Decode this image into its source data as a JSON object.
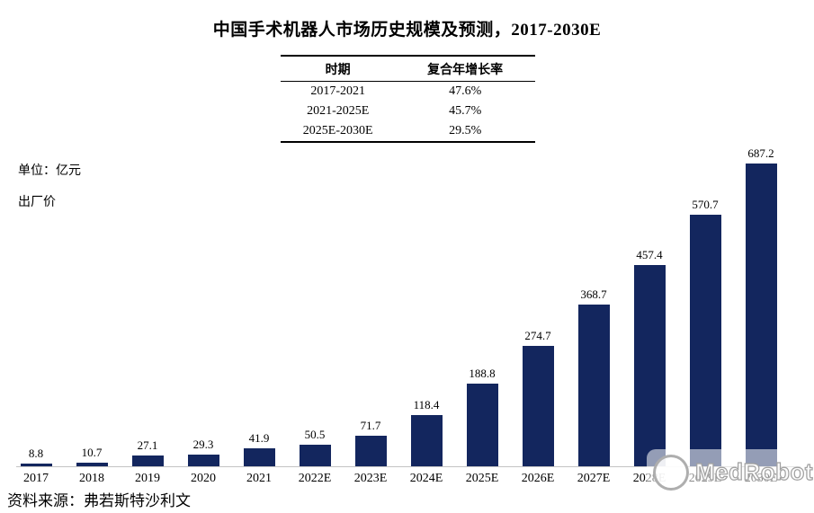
{
  "title": "中国手术机器人市场历史规模及预测，2017-2030E",
  "cagr_table": {
    "headers": [
      "时期",
      "复合年增长率"
    ],
    "rows": [
      [
        "2017-2021",
        "47.6%"
      ],
      [
        "2021-2025E",
        "45.7%"
      ],
      [
        "2025E-2030E",
        "29.5%"
      ]
    ]
  },
  "unit_label": "单位：亿元",
  "price_basis_label": "出厂价",
  "source_note": "资料来源：弗若斯特沙利文",
  "watermark_text": "MedRobot",
  "colors": {
    "bar": "#13265E",
    "axis_line": "#c4c4c4",
    "text": "#000000"
  },
  "chart_data": {
    "type": "bar",
    "title": "中国手术机器人市场历史规模及预测，2017-2030E",
    "categories": [
      "2017",
      "2018",
      "2019",
      "2020",
      "2021",
      "2022E",
      "2023E",
      "2024E",
      "2025E",
      "2026E",
      "2027E",
      "2028E",
      "2029E",
      "2030E"
    ],
    "values": [
      8.8,
      10.7,
      27.1,
      29.3,
      41.9,
      50.5,
      71.7,
      118.4,
      188.8,
      274.7,
      368.7,
      457.4,
      570.7,
      687.2
    ],
    "xlabel": "",
    "ylabel": "亿元",
    "ylim": [
      0,
      700
    ],
    "grid": false,
    "legend": false,
    "data_labels": true
  }
}
